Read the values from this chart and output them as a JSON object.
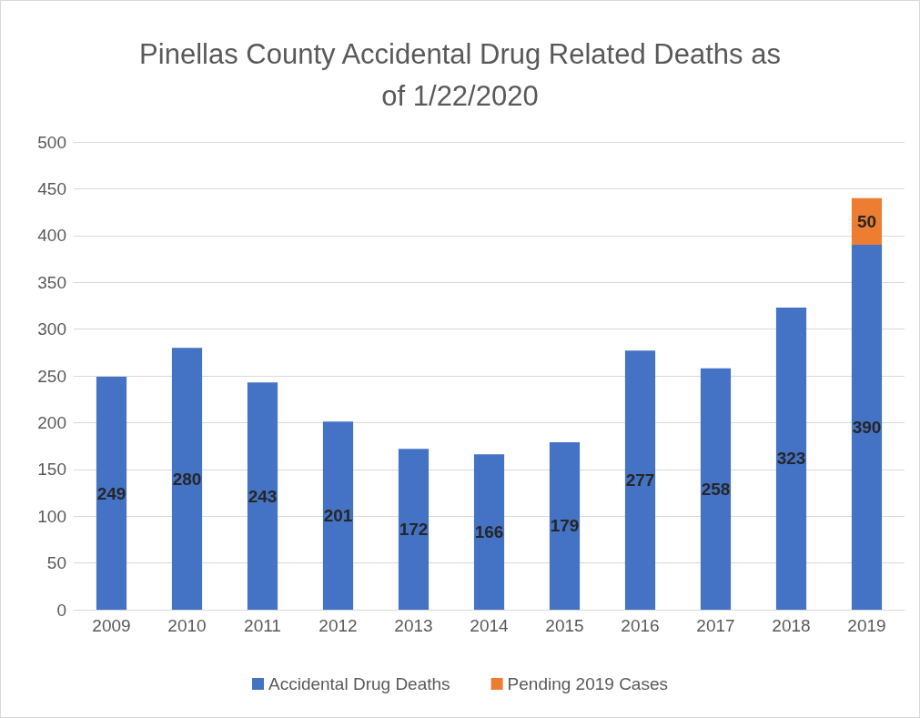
{
  "chart_data": {
    "type": "bar",
    "title": "Pinellas County Accidental Drug Related Deaths as of 1/22/2020",
    "categories": [
      "2009",
      "2010",
      "2011",
      "2012",
      "2013",
      "2014",
      "2015",
      "2016",
      "2017",
      "2018",
      "2019"
    ],
    "series": [
      {
        "name": "Accidental Drug Deaths",
        "color": "#4472c4",
        "values": [
          249,
          280,
          243,
          201,
          172,
          166,
          179,
          277,
          258,
          323,
          390
        ]
      },
      {
        "name": "Pending 2019 Cases",
        "color": "#ed7d31",
        "values": [
          null,
          null,
          null,
          null,
          null,
          null,
          null,
          null,
          null,
          null,
          50
        ]
      }
    ],
    "stacked": true,
    "data_labels": true,
    "ylim": [
      0,
      500
    ],
    "yticks": [
      0,
      50,
      100,
      150,
      200,
      250,
      300,
      350,
      400,
      450,
      500
    ],
    "grid": "y",
    "legend": "bottom"
  }
}
